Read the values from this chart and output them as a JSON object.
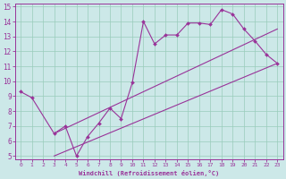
{
  "xlabel": "Windchill (Refroidissement éolien,°C)",
  "bg_color": "#cce8e8",
  "grid_color": "#99ccbb",
  "line_color": "#993399",
  "jagged_x": [
    0,
    1,
    3,
    4,
    5,
    6,
    7,
    8,
    9,
    10,
    11,
    12,
    13,
    14,
    15,
    16,
    17,
    18,
    19,
    20,
    21,
    22,
    23
  ],
  "jagged_y": [
    9.3,
    8.9,
    6.5,
    7.0,
    5.0,
    6.3,
    7.2,
    8.2,
    7.5,
    9.9,
    14.0,
    12.5,
    13.1,
    13.1,
    13.9,
    13.9,
    13.8,
    14.8,
    14.5,
    13.5,
    12.7,
    11.8,
    11.2
  ],
  "line2_x": [
    3,
    23
  ],
  "line2_y": [
    6.5,
    13.5
  ],
  "line3_x": [
    3,
    23
  ],
  "line3_y": [
    5.0,
    11.2
  ],
  "xmin": -0.5,
  "xmax": 23.5,
  "ymin": 5,
  "ymax": 15,
  "yticks": [
    5,
    6,
    7,
    8,
    9,
    10,
    11,
    12,
    13,
    14,
    15
  ],
  "xticks": [
    0,
    1,
    2,
    3,
    4,
    5,
    6,
    7,
    8,
    9,
    10,
    11,
    12,
    13,
    14,
    15,
    16,
    17,
    18,
    19,
    20,
    21,
    22,
    23
  ]
}
